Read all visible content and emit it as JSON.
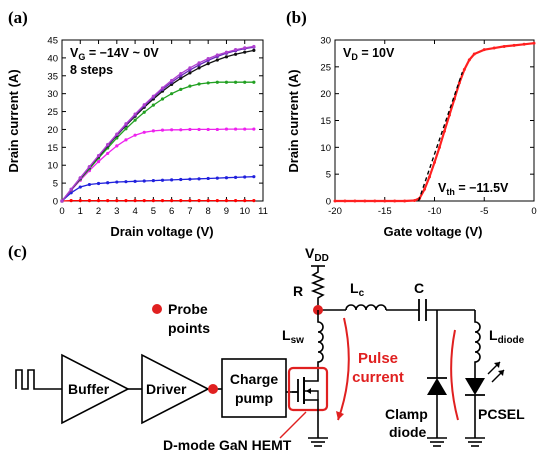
{
  "panels": {
    "a": "(a)",
    "b": "(b)",
    "c": "(c)"
  },
  "chart_data": [
    {
      "type": "line",
      "panel": "(a)",
      "xlabel": "Drain voltage (V)",
      "ylabel": "Drain current (A)",
      "xlim": [
        0,
        11
      ],
      "ylim": [
        0,
        45
      ],
      "x_ticks": [
        "0",
        "1",
        "2",
        "3",
        "4",
        "5",
        "6",
        "7",
        "8",
        "9",
        "10",
        "11"
      ],
      "y_ticks": [
        "0",
        "5",
        "10",
        "15",
        "20",
        "25",
        "30",
        "35",
        "40",
        "45"
      ],
      "annotations": [
        "V_G = −14V ~ 0V",
        "8 steps"
      ],
      "ann_vg_main": "V",
      "ann_vg_sub": "G",
      "ann_vg_rest": " = −14V ~ 0V",
      "ann_steps": "8 steps",
      "x": [
        0,
        0.5,
        1,
        1.5,
        2,
        2.5,
        3,
        3.5,
        4,
        4.5,
        5,
        5.5,
        6,
        6.5,
        7,
        7.5,
        8,
        8.5,
        9,
        9.5,
        10,
        10.5
      ],
      "series": [
        {
          "color": "#ff0000",
          "values": [
            0,
            0.1,
            0.1,
            0.1,
            0.1,
            0.1,
            0.1,
            0.1,
            0.1,
            0.1,
            0.1,
            0.1,
            0.1,
            0.1,
            0.1,
            0.1,
            0.1,
            0.1,
            0.1,
            0.1,
            0.1,
            0.1
          ]
        },
        {
          "color": "#2020dd",
          "values": [
            0,
            2.3,
            3.9,
            4.6,
            4.9,
            5.1,
            5.3,
            5.4,
            5.5,
            5.6,
            5.7,
            5.8,
            5.9,
            6.0,
            6.1,
            6.2,
            6.3,
            6.4,
            6.5,
            6.6,
            6.7,
            6.8
          ]
        },
        {
          "color": "#ee22ee",
          "values": [
            0,
            3.0,
            5.8,
            8.5,
            11,
            13.3,
            15.4,
            17.1,
            18.4,
            19.2,
            19.6,
            19.8,
            19.9,
            19.9,
            20.0,
            20.0,
            20.0,
            20.0,
            20.1,
            20.1,
            20.1,
            20.1
          ]
        },
        {
          "color": "#22a022",
          "values": [
            0,
            3.1,
            6.1,
            9.0,
            12.0,
            14.8,
            17.6,
            20.2,
            22.6,
            24.8,
            26.8,
            28.5,
            30.0,
            31.2,
            32.1,
            32.7,
            33.0,
            33.2,
            33.2,
            33.2,
            33.2,
            33.2
          ]
        },
        {
          "color": "#111111",
          "values": [
            0,
            3.2,
            6.3,
            9.4,
            12.4,
            15.4,
            18.3,
            21.1,
            23.7,
            26.2,
            28.5,
            30.7,
            32.6,
            34.3,
            35.8,
            37.2,
            38.4,
            39.4,
            40.3,
            41.0,
            41.6,
            42.1
          ]
        },
        {
          "color": "#6a2ab8",
          "values": [
            0,
            3.2,
            6.4,
            9.5,
            12.6,
            15.6,
            18.5,
            21.3,
            24.0,
            26.6,
            29.0,
            31.2,
            33.2,
            35.0,
            36.6,
            38.0,
            39.3,
            40.4,
            41.3,
            42.0,
            42.6,
            43.0
          ]
        },
        {
          "color": "#b040d0",
          "values": [
            0,
            3.3,
            6.5,
            9.6,
            12.7,
            15.8,
            18.7,
            21.6,
            24.3,
            26.9,
            29.3,
            31.6,
            33.7,
            35.6,
            37.2,
            38.6,
            39.8,
            40.8,
            41.6,
            42.3,
            42.8,
            43.2
          ]
        }
      ]
    },
    {
      "type": "line",
      "panel": "(b)",
      "xlabel": "Gate voltage (V)",
      "ylabel": "Drain current (A)",
      "xlim": [
        -20,
        0
      ],
      "ylim": [
        0,
        30
      ],
      "x_ticks": [
        "-20",
        "-15",
        "-10",
        "-5",
        "0"
      ],
      "y_ticks": [
        "0",
        "5",
        "10",
        "15",
        "20",
        "25",
        "30"
      ],
      "annotations": [
        "V_D = 10V",
        "V_th = −11.5V"
      ],
      "ann_vd_main": "V",
      "ann_vd_sub": "D",
      "ann_vd_rest": " = 10V",
      "ann_vth_main": "V",
      "ann_vth_sub": "th",
      "ann_vth_rest": " = −11.5V",
      "x": [
        -20,
        -19,
        -18,
        -17,
        -16,
        -15,
        -14,
        -13,
        -12,
        -11.5,
        -11,
        -10.5,
        -10,
        -9.5,
        -9,
        -8.5,
        -8,
        -7.5,
        -7,
        -6.5,
        -6,
        -5,
        -4,
        -3,
        -2,
        -1,
        0
      ],
      "values": [
        0,
        0,
        0,
        0,
        0,
        0,
        0,
        0,
        0.1,
        0.5,
        2.2,
        4.5,
        7.2,
        10,
        13,
        16,
        19,
        22,
        24.5,
        26.3,
        27.4,
        28.2,
        28.5,
        28.8,
        29,
        29.2,
        29.4
      ],
      "color": "#ff2020",
      "fit_line": {
        "x": [
          -11.6,
          -7.2
        ],
        "y": [
          0,
          24
        ]
      }
    }
  ],
  "circuit": {
    "vdd_main": "V",
    "vdd_sub": "DD",
    "r_label": "R",
    "lc_main": "L",
    "lc_sub": "c",
    "c_label": "C",
    "lsw_main": "L",
    "lsw_sub": "sw",
    "ldiode_main": "L",
    "ldiode_sub": "diode",
    "probe_label_1": "Probe",
    "probe_label_2": "points",
    "buffer_label": "Buffer",
    "driver_label": "Driver",
    "charge_label_1": "Charge",
    "charge_label_2": "pump",
    "pulse_label_1": "Pulse",
    "pulse_label_2": "current",
    "clamp_label_1": "Clamp",
    "clamp_label_2": "diode",
    "pcsel_label": "PCSEL",
    "hemt_label": "D-mode GaN HEMT",
    "accent_color": "#e02020"
  }
}
